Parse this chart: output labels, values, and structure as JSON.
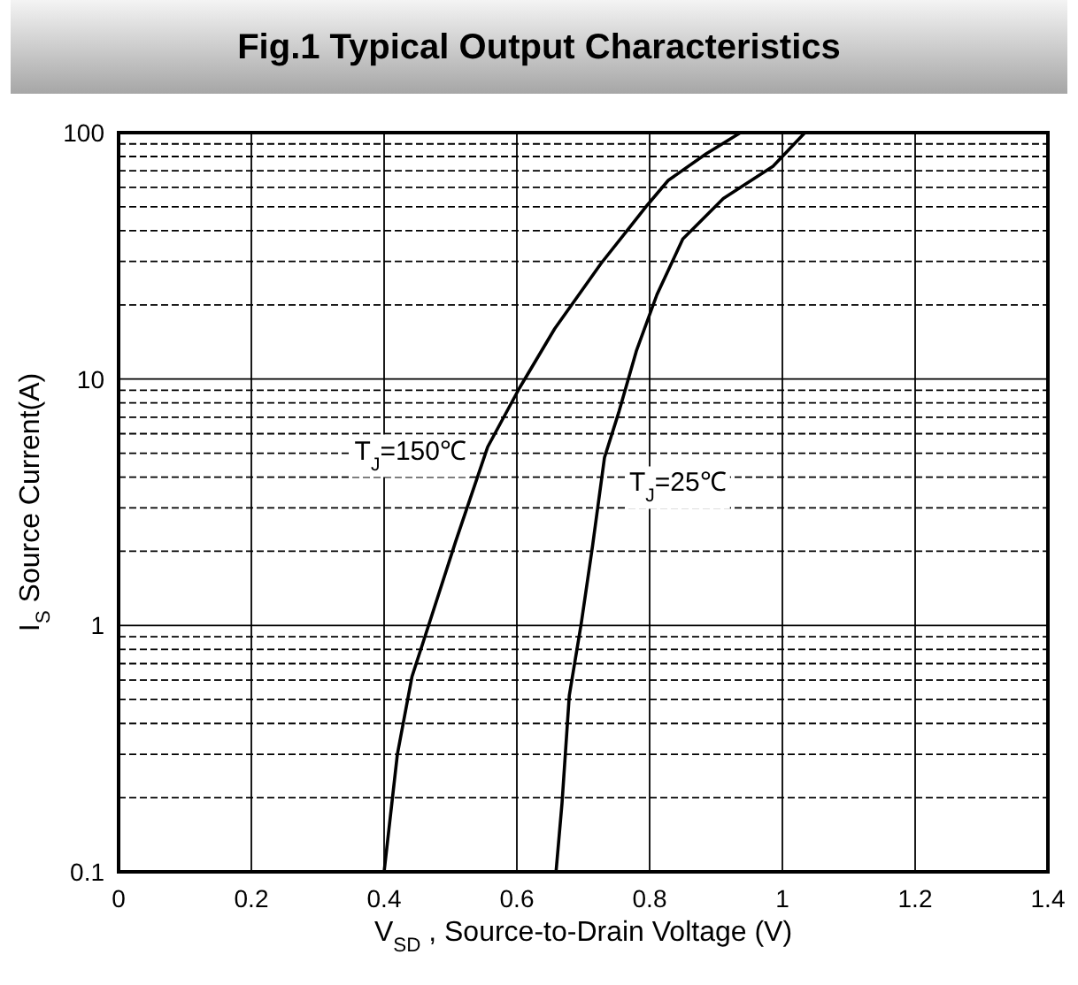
{
  "chart_data": {
    "type": "line",
    "title": "Fig.1 Typical Output Characteristics",
    "xlabel": "V$_{SD}$ , Source-to-Drain Voltage (V)",
    "ylabel": "I$_{S}$ Source Current(A)",
    "xlim": [
      0,
      1.4
    ],
    "xticks": [
      0,
      0.2,
      0.4,
      0.6,
      0.8,
      1,
      1.2,
      1.4
    ],
    "ylim": [
      0.1,
      100
    ],
    "yticks": [
      0.1,
      1,
      10,
      100
    ],
    "log": true,
    "grid": true,
    "marker": "none",
    "line_style": "solid",
    "series": [
      {
        "name": "T$_{J}$=150℃",
        "color": "#000000",
        "x": [
          0.4,
          0.42,
          0.442,
          0.468,
          0.508,
          0.556,
          0.604,
          0.657,
          0.727,
          0.797,
          0.828,
          0.885,
          0.937
        ],
        "values": [
          0.1,
          0.3,
          0.62,
          1.02,
          2.2,
          5.3,
          9.2,
          16,
          29.5,
          51,
          64,
          82,
          100
        ]
      },
      {
        "name": "T$_{J}$=25℃",
        "color": "#000000",
        "x": [
          0.659,
          0.668,
          0.679,
          0.697,
          0.714,
          0.732,
          0.754,
          0.78,
          0.811,
          0.85,
          0.911,
          0.986,
          1.034
        ],
        "values": [
          0.1,
          0.19,
          0.52,
          1.02,
          2.1,
          4.8,
          7.4,
          13,
          22,
          37,
          54,
          73,
          100
        ]
      }
    ]
  }
}
